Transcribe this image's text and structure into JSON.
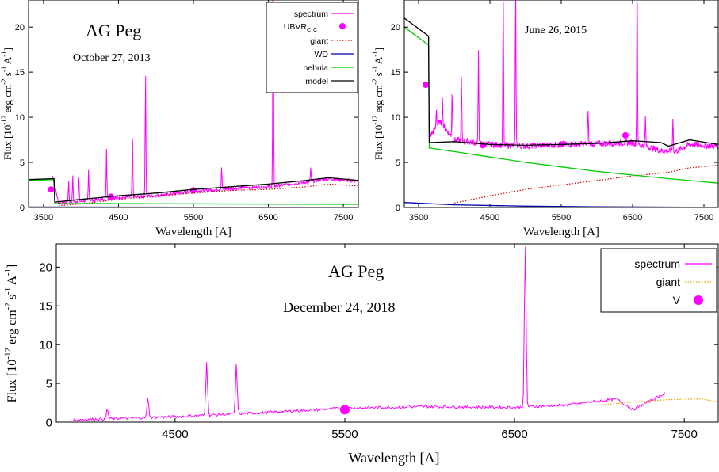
{
  "yaxis_label": "Flux [10^-12 erg cm^-2 s^-1 A^-1]",
  "xaxis_label": "Wavelength [A]",
  "colors": {
    "spectrum": "#ff00ff",
    "giant": "#cc0000",
    "giant_c": "#e8a000",
    "wd": "#0000aa",
    "nebula": "#00cc00",
    "model": "#000000",
    "photometry": "#ff00ff"
  },
  "chart_data": [
    {
      "type": "line",
      "title": "AG Peg",
      "subtitle": "October 27, 2013",
      "xlabel": "Wavelength [A]",
      "ylabel": "Flux [10^-12 erg cm^-2 s^-1 A^-1]",
      "xlim": [
        3300,
        7700
      ],
      "ylim": [
        0,
        23
      ],
      "xticks": [
        3500,
        4500,
        5500,
        6500,
        7500
      ],
      "yticks": [
        0,
        5,
        10,
        15,
        20
      ],
      "legend_position": "top-right",
      "legend": [
        "spectrum",
        "UBVRCIC",
        "giant",
        "WD",
        "nebula",
        "model"
      ],
      "series": [
        {
          "name": "spectrum",
          "style": "line",
          "color": "#ff00ff",
          "baseline": [
            [
              3620,
              3.5
            ],
            [
              3700,
              0.5
            ],
            [
              4000,
              0.7
            ],
            [
              4500,
              1.1
            ],
            [
              5000,
              1.3
            ],
            [
              5500,
              1.8
            ],
            [
              6000,
              2.1
            ],
            [
              6500,
              2.3
            ],
            [
              7000,
              2.8
            ],
            [
              7300,
              3.2
            ],
            [
              7700,
              2.9
            ]
          ],
          "lines": [
            [
              3835,
              3
            ],
            [
              3890,
              3.4
            ],
            [
              3970,
              3.5
            ],
            [
              4101,
              4.2
            ],
            [
              4340,
              6.5
            ],
            [
              4686,
              8.1
            ],
            [
              4861,
              14.9
            ],
            [
              5876,
              4.5
            ],
            [
              6563,
              30
            ],
            [
              7065,
              4.3
            ]
          ]
        },
        {
          "name": "UBVRCIC",
          "style": "points",
          "color": "#ff00ff",
          "x": [
            3600,
            4400,
            5500
          ],
          "y": [
            2.0,
            1.2,
            1.9
          ]
        },
        {
          "name": "giant",
          "style": "dotted",
          "color": "#cc0000",
          "x": [
            3700,
            4000,
            4500,
            5000,
            5500,
            6000,
            6500,
            7000,
            7300,
            7700
          ],
          "y": [
            0.2,
            0.4,
            0.9,
            1.3,
            1.6,
            1.9,
            2.0,
            2.3,
            2.6,
            2.4
          ]
        },
        {
          "name": "WD",
          "style": "line",
          "color": "#0000aa",
          "x": [
            3300,
            7700
          ],
          "y": [
            0.05,
            0.02
          ]
        },
        {
          "name": "nebula",
          "style": "line",
          "color": "#00cc00",
          "x": [
            3300,
            3640,
            3650,
            7700
          ],
          "y": [
            3.0,
            3.1,
            0.45,
            0.35
          ]
        },
        {
          "name": "model",
          "style": "line",
          "color": "#000000",
          "x": [
            3300,
            3640,
            3650,
            4000,
            4500,
            5000,
            5500,
            6000,
            6500,
            7000,
            7300,
            7700
          ],
          "y": [
            3.1,
            3.2,
            0.6,
            0.9,
            1.3,
            1.6,
            2.0,
            2.3,
            2.6,
            3.0,
            3.3,
            3.0
          ]
        }
      ]
    },
    {
      "type": "line",
      "title": "",
      "subtitle": "June 26, 2015",
      "xlabel": "Wavelength [A]",
      "ylabel": "Flux [10^-12 erg cm^-2 s^-1 A^-1]",
      "xlim": [
        3300,
        7700
      ],
      "ylim": [
        0,
        23
      ],
      "xticks": [
        3500,
        4500,
        5500,
        6500,
        7500
      ],
      "yticks": [
        0,
        5,
        10,
        15,
        20
      ],
      "series": [
        {
          "name": "spectrum",
          "style": "line",
          "color": "#ff00ff",
          "baseline": [
            [
              3650,
              7.8
            ],
            [
              3800,
              9.5
            ],
            [
              4000,
              7.5
            ],
            [
              4500,
              7.0
            ],
            [
              5000,
              6.8
            ],
            [
              5500,
              7.0
            ],
            [
              6000,
              7.1
            ],
            [
              6500,
              7.2
            ],
            [
              6900,
              6.3
            ],
            [
              7100,
              6.2
            ],
            [
              7300,
              7.0
            ],
            [
              7700,
              6.8
            ]
          ],
          "lines": [
            [
              3750,
              11
            ],
            [
              3835,
              12
            ],
            [
              3970,
              13
            ],
            [
              4101,
              14.5
            ],
            [
              4340,
              17.5
            ],
            [
              4686,
              24
            ],
            [
              4861,
              24
            ],
            [
              5876,
              11
            ],
            [
              6563,
              26
            ],
            [
              6680,
              10
            ],
            [
              7065,
              10
            ]
          ]
        },
        {
          "name": "UBVRCIC",
          "style": "points",
          "color": "#ff00ff",
          "x": [
            3600,
            4400,
            5500,
            6400
          ],
          "y": [
            13.6,
            6.9,
            7.0,
            8.0
          ]
        },
        {
          "name": "giant",
          "style": "dotted",
          "color": "#cc0000",
          "x": [
            4000,
            4500,
            5000,
            5500,
            6000,
            6500,
            7000,
            7300,
            7700
          ],
          "y": [
            0.5,
            1.3,
            2.0,
            2.5,
            3.0,
            3.5,
            3.9,
            4.4,
            4.7
          ]
        },
        {
          "name": "WD",
          "style": "line",
          "color": "#0000aa",
          "x": [
            3300,
            4000,
            5000,
            6000,
            7000,
            7700
          ],
          "y": [
            0.55,
            0.3,
            0.15,
            0.08,
            0.04,
            0.02
          ]
        },
        {
          "name": "nebula",
          "style": "line",
          "color": "#00cc00",
          "x": [
            3300,
            3640,
            3650,
            4000,
            4500,
            5000,
            5500,
            6000,
            6500,
            7000,
            7700
          ],
          "y": [
            20.0,
            18.0,
            6.6,
            6.2,
            5.6,
            5.0,
            4.5,
            4.0,
            3.6,
            3.2,
            2.7
          ]
        },
        {
          "name": "model",
          "style": "line",
          "color": "#000000",
          "x": [
            3300,
            3640,
            3650,
            4000,
            4500,
            5000,
            5500,
            6000,
            6500,
            6900,
            7000,
            7300,
            7700
          ],
          "y": [
            21.0,
            19.0,
            7.2,
            7.3,
            7.0,
            6.9,
            7.0,
            7.1,
            7.4,
            7.2,
            6.8,
            7.5,
            7.0
          ]
        }
      ]
    },
    {
      "type": "line",
      "title": "AG Peg",
      "subtitle": "December 24, 2018",
      "xlabel": "Wavelength [A]",
      "ylabel": "Flux [10^-12 erg cm^-2 s^-1 A^-1]",
      "xlim": [
        3800,
        7700
      ],
      "ylim": [
        0,
        23
      ],
      "xticks": [
        4500,
        5500,
        6500,
        7500
      ],
      "yticks": [
        0,
        5,
        10,
        15,
        20
      ],
      "legend_position": "top-right",
      "legend": [
        "spectrum",
        "giant",
        "V"
      ],
      "series": [
        {
          "name": "spectrum",
          "style": "line",
          "color": "#ff00ff",
          "baseline": [
            [
              3900,
              0.3
            ],
            [
              4500,
              0.7
            ],
            [
              5000,
              1.2
            ],
            [
              5500,
              1.8
            ],
            [
              6000,
              2.0
            ],
            [
              6400,
              1.9
            ],
            [
              6500,
              1.9
            ],
            [
              6800,
              2.2
            ],
            [
              7100,
              3.0
            ],
            [
              7200,
              1.6
            ],
            [
              7390,
              3.8
            ]
          ],
          "lines": [
            [
              4101,
              1.7
            ],
            [
              4340,
              3.2
            ],
            [
              4686,
              7.9
            ],
            [
              4861,
              7.5
            ],
            [
              5876,
              2.2
            ],
            [
              6563,
              23.0
            ]
          ]
        },
        {
          "name": "giant",
          "style": "dotted",
          "color": "#e8a000",
          "x": [
            7000,
            7200,
            7400,
            7600,
            7700
          ],
          "y": [
            2.2,
            2.6,
            2.9,
            3.0,
            2.6
          ]
        },
        {
          "name": "V",
          "style": "points",
          "color": "#ff00ff",
          "x": [
            5500
          ],
          "y": [
            1.6
          ]
        }
      ]
    }
  ]
}
